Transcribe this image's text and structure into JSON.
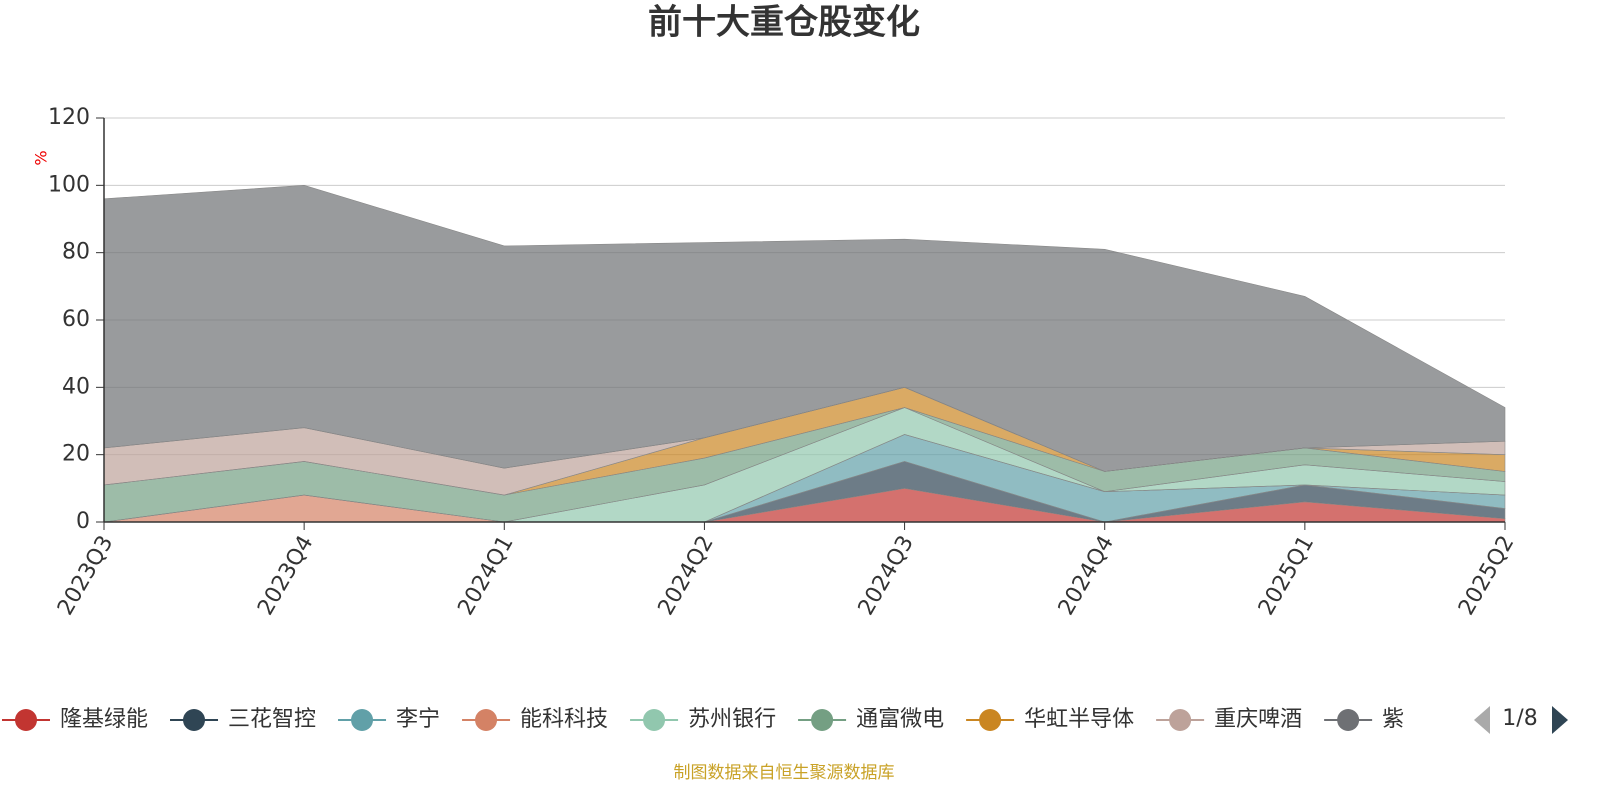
{
  "chart_data": {
    "type": "stacked_area",
    "title": "前十大重仓股变化",
    "y_label": "%",
    "categories": [
      "2023Q3",
      "2023Q4",
      "2024Q1",
      "2024Q2",
      "2024Q3",
      "2024Q4",
      "2025Q1",
      "2025Q2"
    ],
    "series": [
      {
        "name": "隆基绿能",
        "color": "#c23531",
        "values": [
          0,
          0,
          0,
          0,
          10,
          0,
          6,
          1
        ]
      },
      {
        "name": "三花智控",
        "color": "#2f4554",
        "values": [
          0,
          0,
          0,
          0,
          8,
          0,
          5,
          3
        ]
      },
      {
        "name": "李宁",
        "color": "#61a0a8",
        "values": [
          0,
          0,
          0,
          0,
          8,
          9,
          0,
          4
        ]
      },
      {
        "name": "能科科技",
        "color": "#d48265",
        "values": [
          0,
          8,
          0,
          0,
          0,
          0,
          0,
          0
        ]
      },
      {
        "name": "苏州银行",
        "color": "#91c7ae",
        "values": [
          0,
          0,
          0,
          11,
          8,
          0,
          6,
          4
        ]
      },
      {
        "name": "通富微电",
        "color": "#749f83",
        "values": [
          11,
          10,
          8,
          8,
          0,
          6,
          5,
          3
        ]
      },
      {
        "name": "华虹半导体",
        "color": "#ca8622",
        "values": [
          0,
          0,
          0,
          6,
          6,
          0,
          0,
          5
        ]
      },
      {
        "name": "重庆啤酒",
        "color": "#bda29a",
        "values": [
          11,
          10,
          8,
          0,
          0,
          0,
          0,
          4
        ]
      },
      {
        "name": "紫",
        "color": "#6e7074",
        "values": [
          74,
          72,
          66,
          58,
          44,
          66,
          45,
          10
        ]
      }
    ],
    "ylim": [
      0,
      120
    ],
    "yticks": [
      0,
      20,
      40,
      60,
      80,
      100,
      120
    ],
    "grid": true,
    "legend_page": "1/8",
    "source": "制图数据来自恒生聚源数据库"
  }
}
